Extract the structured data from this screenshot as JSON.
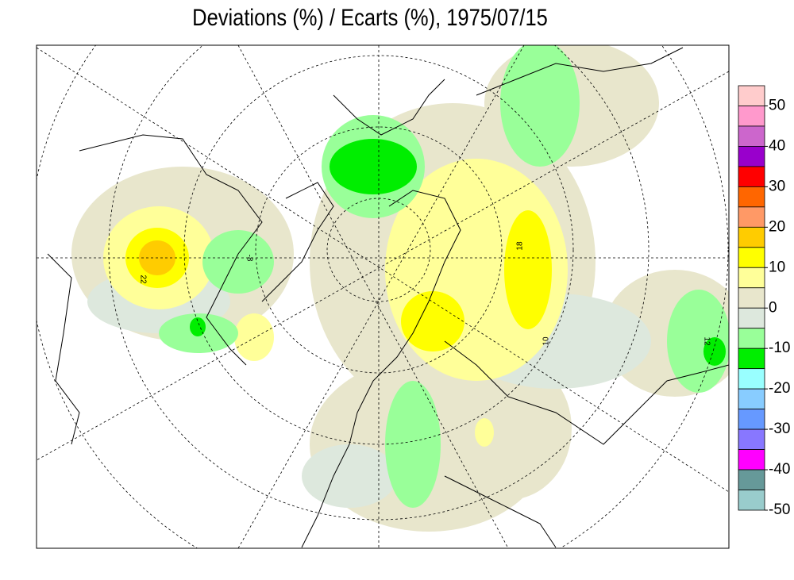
{
  "title": "Deviations (%) / Ecarts (%), 1975/07/15",
  "colorbar": {
    "colors": [
      "#ffcccc",
      "#ff99cc",
      "#cc66cc",
      "#9900cc",
      "#ff0000",
      "#ff6600",
      "#ff9966",
      "#ffcc00",
      "#ffff00",
      "#ffff99",
      "#e8e6cc",
      "#dde8dd",
      "#99ff99",
      "#00ee00",
      "#99ffff",
      "#88ccff",
      "#6699ff",
      "#8877ff",
      "#ff00ff",
      "#669999",
      "#99cccc"
    ],
    "ticks": [
      50,
      40,
      30,
      20,
      10,
      0,
      -10,
      -20,
      -30,
      -40,
      -50
    ]
  },
  "contour_labels": [
    "22",
    "18",
    "12",
    "10",
    "-8"
  ]
}
